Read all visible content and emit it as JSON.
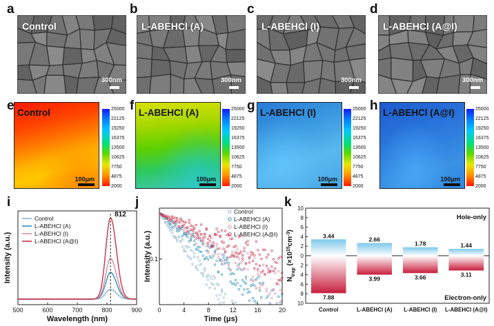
{
  "panel_labels": [
    "a",
    "b",
    "c",
    "d",
    "e",
    "f",
    "g",
    "h",
    "i",
    "j",
    "k"
  ],
  "sem": {
    "titles": [
      "Control",
      "L-ABEHCl (A)",
      "L-ABEHCl (I)",
      "L-ABEHCl (A@I)"
    ],
    "scale": "300nm"
  },
  "pl_map": {
    "titles": [
      "Control",
      "L-ABEHCl (A)",
      "L-ABEHCl (I)",
      "L-ABEHCl (A@I)"
    ],
    "scale": "100μm",
    "colorbar_ticks": [
      "25000",
      "22125",
      "19250",
      "16375",
      "13500",
      "10625",
      "7750",
      "4875",
      "2000"
    ]
  },
  "colors": {
    "control": "#8ab4c8",
    "a": "#2a8fb8",
    "i": "#d48aa6",
    "ai": "#c8304a",
    "hole_bar": "#7ec8ea",
    "electron_bar": "#c81e3c"
  },
  "chart_data": [
    {
      "id": "i",
      "type": "line",
      "xlabel": "Wavelength (nm)",
      "ylabel": "Intensity (a.u.)",
      "xlim": [
        500,
        900
      ],
      "xticks": [
        "500",
        "600",
        "700",
        "800",
        "900"
      ],
      "annotation": "812",
      "series": [
        {
          "name": "Control",
          "peak_x": 812,
          "peak_rel": 0.12
        },
        {
          "name": "L-ABEHCl (A)",
          "peak_x": 812,
          "peak_rel": 0.33
        },
        {
          "name": "L-ABEHCl (I)",
          "peak_x": 812,
          "peak_rel": 0.5
        },
        {
          "name": "L-ABEHCl (A@I)",
          "peak_x": 812,
          "peak_rel": 1.0
        }
      ]
    },
    {
      "id": "j",
      "type": "scatter",
      "xlabel": "Time (μs)",
      "ylabel": "Intensity (a.u.)",
      "xlim": [
        0,
        20
      ],
      "xticks": [
        "0",
        "4",
        "8",
        "12",
        "16",
        "20"
      ],
      "yscale": "log",
      "yticks": [
        "0.1"
      ],
      "series": [
        {
          "name": "Control"
        },
        {
          "name": "L-ABEHCl (A)"
        },
        {
          "name": "L-ABEHCl (I)"
        },
        {
          "name": "L-ABEHCl (A@I)"
        }
      ]
    },
    {
      "id": "k",
      "type": "bar",
      "ylabel": "N_trap (×10^15 cm^-3)",
      "ylim": [
        -10,
        10
      ],
      "yticks": [
        "10",
        "8",
        "6",
        "4",
        "2",
        "0",
        "2",
        "4",
        "6",
        "8",
        "10"
      ],
      "categories": [
        "Control",
        "L-ABEHCl (A)",
        "L-ABEHCl (I)",
        "L-ABEHCl (A@I)"
      ],
      "series": [
        {
          "name": "Hole-only",
          "values": [
            3.44,
            2.66,
            1.78,
            1.44
          ],
          "labels": [
            "3.44",
            "2.66",
            "1.78",
            "1.44"
          ]
        },
        {
          "name": "Electron-only",
          "values": [
            7.88,
            3.99,
            3.66,
            3.11
          ],
          "labels": [
            "7.88",
            "3.99",
            "3.66",
            "3.11"
          ]
        }
      ]
    }
  ]
}
